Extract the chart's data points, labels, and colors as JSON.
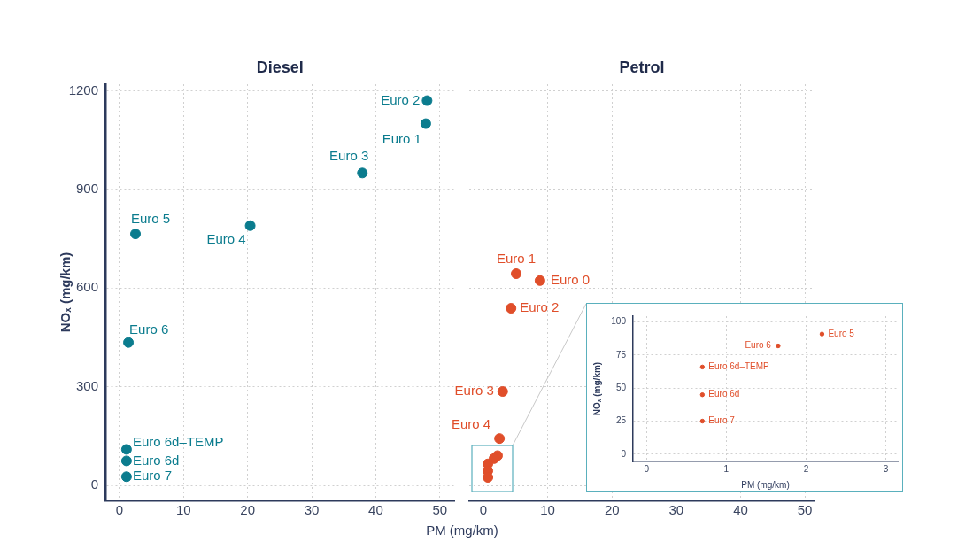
{
  "chart_data": [
    {
      "type": "scatter",
      "title": "Diesel",
      "xlabel": "PM (mg/km)",
      "ylabel": "NOₓ (mg/km)",
      "marker": "circle",
      "grid": true,
      "series": [
        {
          "color": "#0b7c8e",
          "x": [
            47.8,
            48.0,
            37.9,
            20.4,
            2.5,
            1.4,
            1.1,
            1.1,
            1.1
          ],
          "values": [
            1100,
            1170,
            950,
            790,
            765,
            435,
            110,
            75,
            27
          ]
        }
      ],
      "xlim": [
        -2.2,
        52.3
      ],
      "xticks": [
        0,
        10,
        20,
        30,
        40,
        50
      ],
      "ylim": [
        -45,
        1220
      ],
      "yticks": [
        0,
        300,
        600,
        900,
        1200
      ],
      "annotations": [
        {
          "text": "Euro 1",
          "x": 47.8,
          "y": 1100
        },
        {
          "text": "Euro 2",
          "x": 48.0,
          "y": 1170
        },
        {
          "text": "Euro 3",
          "x": 37.9,
          "y": 950
        },
        {
          "text": "Euro 4",
          "x": 20.4,
          "y": 790
        },
        {
          "text": "Euro 5",
          "x": 2.5,
          "y": 765
        },
        {
          "text": "Euro 6",
          "x": 1.4,
          "y": 435
        },
        {
          "text": "Euro 6d–TEMP",
          "x": 1.1,
          "y": 110
        },
        {
          "text": "Euro 6d",
          "x": 1.1,
          "y": 75
        },
        {
          "text": "Euro 7",
          "x": 1.1,
          "y": 27
        }
      ]
    },
    {
      "type": "scatter",
      "title": "Petrol",
      "marker": "circle",
      "grid": true,
      "tick_labels": "x",
      "series": [
        {
          "color": "#e04e2a",
          "x": [
            8.8,
            5.1,
            4.3,
            3.0,
            2.5,
            2.2,
            1.65,
            0.7,
            0.7,
            0.7
          ],
          "values": [
            623,
            644,
            539,
            286,
            143,
            91,
            82,
            66,
            45,
            25
          ]
        }
      ],
      "xlim": [
        -2.2,
        51.5
      ],
      "xticks": [
        0,
        10,
        20,
        30,
        40,
        50
      ],
      "ylim": [
        -45,
        1220
      ],
      "yticks": [
        0,
        300,
        600,
        900,
        1200
      ],
      "annotations": [
        {
          "text": "Euro 0",
          "x": 8.8,
          "y": 623
        },
        {
          "text": "Euro 1",
          "x": 5.1,
          "y": 644
        },
        {
          "text": "Euro 2",
          "x": 4.3,
          "y": 539
        },
        {
          "text": "Euro 3",
          "x": 3.0,
          "y": 286
        },
        {
          "text": "Euro 4",
          "x": 2.5,
          "y": 143
        }
      ]
    },
    {
      "type": "scatter",
      "xlabel": "PM (mg/km)",
      "ylabel": "NOₓ (mg/km)",
      "marker": "circle",
      "grid": true,
      "series": [
        {
          "color": "#e04e2a",
          "x": [
            2.2,
            1.65,
            0.7,
            0.7,
            0.7
          ],
          "values": [
            91,
            82,
            66,
            45,
            25
          ]
        }
      ],
      "xlim": [
        -0.17,
        3.15
      ],
      "xticks": [
        0,
        1,
        2,
        3
      ],
      "ylim": [
        -5.5,
        104.5
      ],
      "yticks": [
        0,
        25,
        50,
        75,
        100
      ],
      "annotations": [
        {
          "text": "Euro 5",
          "x": 2.2,
          "y": 91
        },
        {
          "text": "Euro 6",
          "x": 1.65,
          "y": 82
        },
        {
          "text": "Euro 6d–TEMP",
          "x": 0.7,
          "y": 66
        },
        {
          "text": "Euro 6d",
          "x": 0.7,
          "y": 45
        },
        {
          "text": "Euro 7",
          "x": 0.7,
          "y": 25
        }
      ]
    }
  ]
}
